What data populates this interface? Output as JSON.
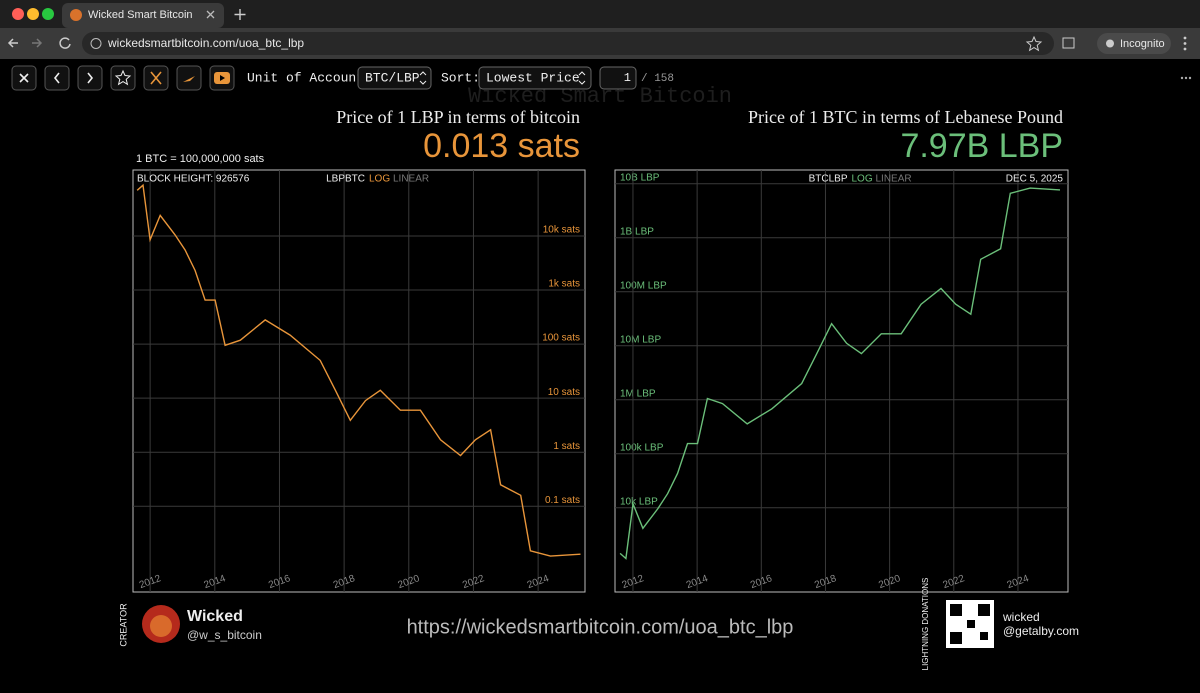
{
  "browser": {
    "tab_title": "Wicked Smart Bitcoin",
    "url": "wickedsmartbitcoin.com/uoa_btc_lbp",
    "profile": "Incognito"
  },
  "toolbar": {
    "unit_label": "Unit of Account:",
    "unit_value": "BTC/LBP",
    "sort_label": "Sort:",
    "sort_value": "Lowest Price",
    "page": "1",
    "page_total": "/ 158"
  },
  "watermark": "Wicked Smart Bitcoin",
  "chart_data": [
    {
      "type": "line",
      "title": "Price of 1 LBP in terms of bitcoin",
      "headline": "0.013 sats",
      "subtitle": "1 BTC = 100,000,000 sats",
      "block_height": "BLOCK HEIGHT: 926576",
      "scale_options": [
        "LOG",
        "LINEAR"
      ],
      "log_scale": true,
      "grid": true,
      "xlim": [
        2011.47,
        2025.45
      ],
      "xticks": [
        2012,
        2014,
        2016,
        2018,
        2020,
        2022,
        2024
      ],
      "ylim": [
        0.0026,
        166000
      ],
      "yticks": [
        {
          "value": 10000,
          "label": "10k sats"
        },
        {
          "value": 1000,
          "label": "1k sats"
        },
        {
          "value": 100,
          "label": "100 sats"
        },
        {
          "value": 10,
          "label": "10 sats"
        },
        {
          "value": 1,
          "label": "1 sats"
        },
        {
          "value": 0.1,
          "label": "0.1 sats"
        }
      ],
      "x": [
        2011.6,
        2011.78,
        2012.0,
        2012.31,
        2012.77,
        2013.08,
        2013.39,
        2013.7,
        2014.01,
        2014.32,
        2014.79,
        2015.56,
        2016.33,
        2017.26,
        2017.73,
        2018.19,
        2018.66,
        2019.12,
        2019.74,
        2020.36,
        2020.98,
        2021.6,
        2022.06,
        2022.53,
        2022.84,
        2023.46,
        2023.76,
        2024.38,
        2025.31
      ],
      "series": [
        {
          "name": "LBPBTC",
          "color": "#e8953a",
          "values": [
            70000,
            87000,
            8500,
            24000,
            10500,
            5500,
            2300,
            650,
            650,
            95,
            118,
            280,
            147,
            50,
            14,
            3.9,
            9,
            14,
            6,
            6,
            1.7,
            0.87,
            1.7,
            2.6,
            0.25,
            0.16,
            0.015,
            0.012,
            0.013
          ]
        }
      ]
    },
    {
      "type": "line",
      "title": "Price of 1 BTC in terms of Lebanese Pound",
      "headline": "7.97B LBP",
      "date": "DEC 5, 2025",
      "scale_options": [
        "LOG",
        "LINEAR"
      ],
      "log_scale": true,
      "grid": true,
      "xlim": [
        2011.44,
        2025.56
      ],
      "xticks": [
        2012,
        2014,
        2016,
        2018,
        2020,
        2022,
        2024
      ],
      "ylim": [
        275,
        18000000000
      ],
      "yticks": [
        {
          "value": 10000000000,
          "label": "10B LBP"
        },
        {
          "value": 1000000000,
          "label": "1B LBP"
        },
        {
          "value": 100000000,
          "label": "100M LBP"
        },
        {
          "value": 10000000,
          "label": "10M LBP"
        },
        {
          "value": 1000000,
          "label": "1M LBP"
        },
        {
          "value": 100000,
          "label": "100k LBP"
        },
        {
          "value": 10000,
          "label": "10k LBP"
        }
      ],
      "x": [
        2011.6,
        2011.78,
        2012.0,
        2012.31,
        2012.77,
        2013.08,
        2013.39,
        2013.7,
        2014.01,
        2014.32,
        2014.79,
        2015.56,
        2016.33,
        2017.26,
        2017.73,
        2018.19,
        2018.66,
        2019.12,
        2019.74,
        2020.36,
        2020.98,
        2021.6,
        2022.06,
        2022.53,
        2022.84,
        2023.46,
        2023.76,
        2024.38,
        2025.31
      ],
      "series": [
        {
          "name": "BTCLBP",
          "color": "#6bbf7a",
          "values": [
            1429,
            1149,
            11765,
            4167,
            9524,
            18182,
            43478,
            153846,
            153846,
            1052632,
            847458,
            357143,
            680272,
            2000000,
            7142857,
            25641026,
            11111111,
            7142857,
            16666667,
            16666667,
            58823529,
            114942529,
            58823529,
            38461538,
            400000000,
            625000000,
            6666666667,
            8333333333,
            7692307692
          ]
        }
      ]
    }
  ],
  "footer": {
    "creator_label": "CREATOR",
    "creator_name": "Wicked",
    "creator_handle": "@w_s_bitcoin",
    "link": "https://wickedsmartbitcoin.com/uoa_btc_lbp",
    "donation_label": "LIGHTNING DONATIONS",
    "donation_name": "wicked",
    "donation_address": "@getalby.com"
  }
}
